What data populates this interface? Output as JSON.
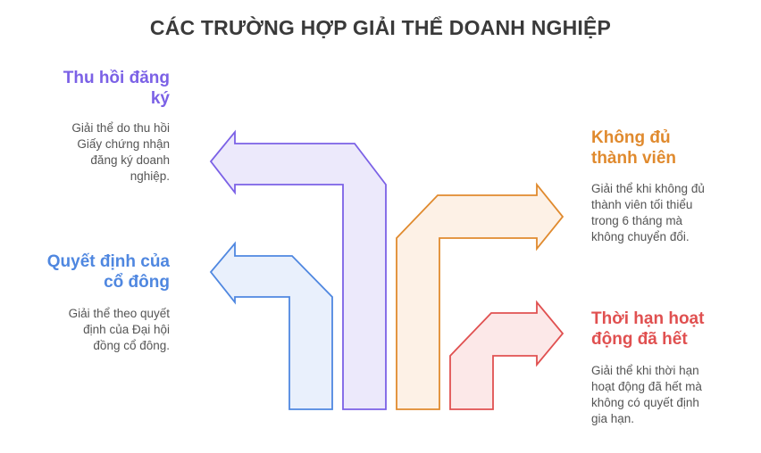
{
  "title": "CÁC TRƯỜNG HỢP GIẢI THỂ DOANH NGHIỆP",
  "items": [
    {
      "heading_line1": "Thu hồi đăng",
      "heading_line2": "ký",
      "desc": [
        "Giải thể do thu hồi",
        "Giấy chứng nhận",
        "đăng ký doanh",
        "nghiệp."
      ],
      "color": "#7b61e6"
    },
    {
      "heading_line1": "Quyết định của",
      "heading_line2": "cổ đông",
      "desc": [
        "Giải thể theo quyết",
        "định của Đại hội",
        "đồng cổ đông."
      ],
      "color": "#4f87e0"
    },
    {
      "heading_line1": "Không đủ",
      "heading_line2": "thành viên",
      "desc": [
        "Giải thể khi không đủ",
        "thành viên tối thiểu",
        "trong 6 tháng mà",
        "không chuyển đổi."
      ],
      "color": "#e08a2e"
    },
    {
      "heading_line1": "Thời hạn hoạt",
      "heading_line2": "động đã hết",
      "desc": [
        "Giải thể khi thời hạn",
        "hoạt động đã hết mà",
        "không có quyết định",
        "gia hạn."
      ],
      "color": "#e05050"
    }
  ]
}
